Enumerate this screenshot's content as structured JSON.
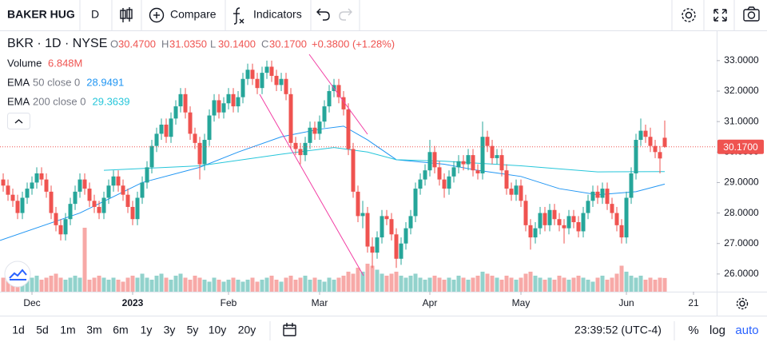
{
  "toolbar": {
    "symbol": "BAKER HUG",
    "interval": "D",
    "compare": "Compare",
    "indicators": "Indicators"
  },
  "chart_data": {
    "type": "candlestick",
    "title": "BKR · 1D · NYSE",
    "header": {
      "open": {
        "label": "O",
        "value": "30.4700"
      },
      "high": {
        "label": "H",
        "value": "31.0350"
      },
      "low": {
        "label": "L",
        "value": "30.1400"
      },
      "close": {
        "label": "C",
        "value": "30.1700"
      },
      "change": "+0.3800 (+1.28%)"
    },
    "up_color": "#26a69a",
    "down_color": "#ef5350",
    "ohlc": [
      [
        29.1,
        29.3,
        28.7,
        28.9
      ],
      [
        28.9,
        29.1,
        28.4,
        28.6
      ],
      [
        28.6,
        28.8,
        28.2,
        28.4
      ],
      [
        28.4,
        28.6,
        27.8,
        28.0
      ],
      [
        28.0,
        28.7,
        27.8,
        28.5
      ],
      [
        28.5,
        29.0,
        28.3,
        28.8
      ],
      [
        28.8,
        29.2,
        28.6,
        29.0
      ],
      [
        29.0,
        29.5,
        28.8,
        29.3
      ],
      [
        29.3,
        29.5,
        28.9,
        29.1
      ],
      [
        29.1,
        29.3,
        28.5,
        28.7
      ],
      [
        28.7,
        28.9,
        27.8,
        28.0
      ],
      [
        28.0,
        28.2,
        27.4,
        27.6
      ],
      [
        27.6,
        27.8,
        27.1,
        27.3
      ],
      [
        27.3,
        28.0,
        27.1,
        27.8
      ],
      [
        27.8,
        28.5,
        27.6,
        28.3
      ],
      [
        28.3,
        28.9,
        28.1,
        28.7
      ],
      [
        28.7,
        29.3,
        28.5,
        29.1
      ],
      [
        29.1,
        29.3,
        28.6,
        28.8
      ],
      [
        28.8,
        29.0,
        28.2,
        28.4
      ],
      [
        28.4,
        28.6,
        28.0,
        28.2
      ],
      [
        28.2,
        28.4,
        27.8,
        28.0
      ],
      [
        28.0,
        28.7,
        27.8,
        28.5
      ],
      [
        28.5,
        29.1,
        28.3,
        28.9
      ],
      [
        28.9,
        29.4,
        28.7,
        29.2
      ],
      [
        29.2,
        29.4,
        28.7,
        28.9
      ],
      [
        28.9,
        29.1,
        28.4,
        28.6
      ],
      [
        28.6,
        28.8,
        28.0,
        28.2
      ],
      [
        28.2,
        28.4,
        27.6,
        27.8
      ],
      [
        27.8,
        28.7,
        27.6,
        28.5
      ],
      [
        28.5,
        29.2,
        28.3,
        29.0
      ],
      [
        29.0,
        29.7,
        28.8,
        29.5
      ],
      [
        29.5,
        30.4,
        29.3,
        30.2
      ],
      [
        30.2,
        30.8,
        30.0,
        30.6
      ],
      [
        30.6,
        31.1,
        30.4,
        30.9
      ],
      [
        30.9,
        31.1,
        30.3,
        30.5
      ],
      [
        30.5,
        31.3,
        30.3,
        31.1
      ],
      [
        31.1,
        31.7,
        30.9,
        31.5
      ],
      [
        31.5,
        32.1,
        31.3,
        31.9
      ],
      [
        31.9,
        32.1,
        31.1,
        31.3
      ],
      [
        31.3,
        31.5,
        30.4,
        30.6
      ],
      [
        30.6,
        30.8,
        30.1,
        30.3
      ],
      [
        30.3,
        30.5,
        29.1,
        29.6
      ],
      [
        29.6,
        30.6,
        29.4,
        30.4
      ],
      [
        30.4,
        31.4,
        30.2,
        31.2
      ],
      [
        31.2,
        31.9,
        31.0,
        31.7
      ],
      [
        31.7,
        31.9,
        31.1,
        31.3
      ],
      [
        31.3,
        31.8,
        31.1,
        31.6
      ],
      [
        31.6,
        32.1,
        31.4,
        31.9
      ],
      [
        31.9,
        32.1,
        31.3,
        31.5
      ],
      [
        31.5,
        32.0,
        31.3,
        31.8
      ],
      [
        31.8,
        32.6,
        31.6,
        32.4
      ],
      [
        32.4,
        32.9,
        32.2,
        32.7
      ],
      [
        32.7,
        32.9,
        32.2,
        32.4
      ],
      [
        32.4,
        32.6,
        31.9,
        32.1
      ],
      [
        32.1,
        32.8,
        31.9,
        32.6
      ],
      [
        32.6,
        33.0,
        32.4,
        32.8
      ],
      [
        32.8,
        33.0,
        32.3,
        32.5
      ],
      [
        32.5,
        32.7,
        32.0,
        32.2
      ],
      [
        32.2,
        32.6,
        32.0,
        32.4
      ],
      [
        32.4,
        32.6,
        31.7,
        31.9
      ],
      [
        31.9,
        32.1,
        30.1,
        30.3
      ],
      [
        30.3,
        30.5,
        29.9,
        30.1
      ],
      [
        30.1,
        30.3,
        29.6,
        29.9
      ],
      [
        29.9,
        30.5,
        29.7,
        30.3
      ],
      [
        30.3,
        31.0,
        30.1,
        30.8
      ],
      [
        30.8,
        31.0,
        30.4,
        30.6
      ],
      [
        30.6,
        31.2,
        30.4,
        31.0
      ],
      [
        31.0,
        31.7,
        30.8,
        31.5
      ],
      [
        31.5,
        32.2,
        31.3,
        32.0
      ],
      [
        32.0,
        32.4,
        31.8,
        32.2
      ],
      [
        32.2,
        32.4,
        31.6,
        31.8
      ],
      [
        31.8,
        32.0,
        31.2,
        31.4
      ],
      [
        31.4,
        31.6,
        29.9,
        30.1
      ],
      [
        30.1,
        30.3,
        28.5,
        28.7
      ],
      [
        28.7,
        28.9,
        27.7,
        27.9
      ],
      [
        27.9,
        28.4,
        27.5,
        28.0
      ],
      [
        28.0,
        28.2,
        26.7,
        26.9
      ],
      [
        26.9,
        27.2,
        26.2,
        26.7
      ],
      [
        26.7,
        27.4,
        26.5,
        27.2
      ],
      [
        27.2,
        28.1,
        27.0,
        27.9
      ],
      [
        27.9,
        28.1,
        27.6,
        27.8
      ],
      [
        27.8,
        28.0,
        27.1,
        27.3
      ],
      [
        27.3,
        27.5,
        26.2,
        26.5
      ],
      [
        26.5,
        27.2,
        26.3,
        27.0
      ],
      [
        27.0,
        27.7,
        26.8,
        27.5
      ],
      [
        27.5,
        28.1,
        27.3,
        27.9
      ],
      [
        27.9,
        29.0,
        27.7,
        28.8
      ],
      [
        28.8,
        29.3,
        28.6,
        29.1
      ],
      [
        29.1,
        29.6,
        28.9,
        29.4
      ],
      [
        29.4,
        30.4,
        29.2,
        30.0
      ],
      [
        30.0,
        30.2,
        29.3,
        29.5
      ],
      [
        29.5,
        29.7,
        28.9,
        29.1
      ],
      [
        29.1,
        29.3,
        28.5,
        28.8
      ],
      [
        28.8,
        29.4,
        28.6,
        29.2
      ],
      [
        29.2,
        29.7,
        29.0,
        29.5
      ],
      [
        29.5,
        29.9,
        29.3,
        29.7
      ],
      [
        29.7,
        29.9,
        29.4,
        29.6
      ],
      [
        29.6,
        30.1,
        29.4,
        29.9
      ],
      [
        29.9,
        30.1,
        29.2,
        29.4
      ],
      [
        29.4,
        29.6,
        29.1,
        29.3
      ],
      [
        29.3,
        31.0,
        29.1,
        30.5
      ],
      [
        30.5,
        30.7,
        30.0,
        30.2
      ],
      [
        30.2,
        30.4,
        29.6,
        29.8
      ],
      [
        29.8,
        30.1,
        29.6,
        29.9
      ],
      [
        29.9,
        30.1,
        29.2,
        29.4
      ],
      [
        29.4,
        29.6,
        28.6,
        28.8
      ],
      [
        28.8,
        29.0,
        28.4,
        28.6
      ],
      [
        28.6,
        29.1,
        28.4,
        28.9
      ],
      [
        28.9,
        29.1,
        28.2,
        28.4
      ],
      [
        28.4,
        28.6,
        27.4,
        27.6
      ],
      [
        27.6,
        27.8,
        26.8,
        27.2
      ],
      [
        27.2,
        27.7,
        27.0,
        27.5
      ],
      [
        27.5,
        28.2,
        27.3,
        28.0
      ],
      [
        28.0,
        28.2,
        27.4,
        27.6
      ],
      [
        27.6,
        28.3,
        27.4,
        28.1
      ],
      [
        28.1,
        28.3,
        27.6,
        27.8
      ],
      [
        27.8,
        28.0,
        27.4,
        27.6
      ],
      [
        27.6,
        27.8,
        27.0,
        27.5
      ],
      [
        27.5,
        28.1,
        27.3,
        27.9
      ],
      [
        27.9,
        28.1,
        27.5,
        27.7
      ],
      [
        27.7,
        27.9,
        27.2,
        27.4
      ],
      [
        27.4,
        28.2,
        27.2,
        28.0
      ],
      [
        28.0,
        28.6,
        27.8,
        28.4
      ],
      [
        28.4,
        28.9,
        28.2,
        28.7
      ],
      [
        28.7,
        28.9,
        28.3,
        28.5
      ],
      [
        28.5,
        29.0,
        28.3,
        28.8
      ],
      [
        28.8,
        29.0,
        28.1,
        28.3
      ],
      [
        28.3,
        28.5,
        27.8,
        28.0
      ],
      [
        28.0,
        28.2,
        27.4,
        27.6
      ],
      [
        27.6,
        27.8,
        27.0,
        27.2
      ],
      [
        27.2,
        28.7,
        27.0,
        28.5
      ],
      [
        28.5,
        29.5,
        28.3,
        29.3
      ],
      [
        29.3,
        30.6,
        29.1,
        30.4
      ],
      [
        30.4,
        31.1,
        30.2,
        30.7
      ],
      [
        30.7,
        30.9,
        30.3,
        30.5
      ],
      [
        30.5,
        30.8,
        30.0,
        30.2
      ],
      [
        30.2,
        30.4,
        29.8,
        30.0
      ],
      [
        30.0,
        30.2,
        29.3,
        29.79
      ],
      [
        30.47,
        31.035,
        30.14,
        30.17
      ]
    ],
    "volume_name": "Volume",
    "volume_value": "6.848M",
    "volume": [
      7,
      6,
      8,
      7,
      9,
      6,
      7,
      8,
      6,
      7,
      8,
      9,
      7,
      6,
      7,
      8,
      7,
      32,
      6,
      7,
      8,
      7,
      6,
      7,
      6,
      5,
      7,
      8,
      7,
      9,
      7,
      6,
      8,
      9,
      7,
      6,
      8,
      9,
      7,
      6,
      8,
      7,
      6,
      5,
      7,
      6,
      5,
      6,
      7,
      6,
      5,
      6,
      7,
      5,
      6,
      7,
      8,
      6,
      5,
      7,
      8,
      6,
      7,
      8,
      6,
      7,
      6,
      5,
      7,
      6,
      7,
      8,
      10,
      9,
      12,
      10,
      14,
      13,
      11,
      9,
      8,
      9,
      10,
      8,
      7,
      8,
      9,
      7,
      6,
      7,
      8,
      7,
      6,
      7,
      6,
      8,
      7,
      6,
      7,
      8,
      10,
      9,
      8,
      7,
      6,
      8,
      7,
      6,
      7,
      9,
      10,
      8,
      7,
      6,
      7,
      6,
      8,
      7,
      6,
      7,
      8,
      7,
      6,
      5,
      7,
      8,
      6,
      7,
      9,
      13,
      10,
      8,
      7,
      8,
      6,
      7,
      6,
      7,
      6.848
    ],
    "indicators": [
      {
        "name": "EMA",
        "params": "50 close 0",
        "value": "28.9491",
        "color": "#2196f3",
        "x": [
          -0.67,
          16,
          29,
          41,
          49,
          58,
          66,
          71,
          76,
          82,
          92,
          99,
          108,
          116,
          124,
          132,
          138
        ],
        "values": [
          27.1,
          28.0,
          29.0,
          29.5,
          30.0,
          30.5,
          30.75,
          30.85,
          30.4,
          29.75,
          29.6,
          29.4,
          29.2,
          28.8,
          28.6,
          28.7,
          28.95
        ]
      },
      {
        "name": "EMA",
        "params": "200 close 0",
        "value": "29.3639",
        "color": "#26c6da",
        "x": [
          21,
          41,
          58,
          69,
          76,
          82,
          92,
          108,
          124,
          138
        ],
        "values": [
          29.4,
          29.55,
          29.93,
          30.15,
          30.0,
          29.75,
          29.7,
          29.55,
          29.35,
          29.36
        ]
      }
    ],
    "xlim": [
      -0.67,
      148.83
    ],
    "xticks": [
      {
        "value": 6,
        "label": "Dec"
      },
      {
        "value": 27,
        "label": "2023"
      },
      {
        "value": 47,
        "label": "Feb"
      },
      {
        "value": 66,
        "label": "Mar"
      },
      {
        "value": 89,
        "label": "Apr"
      },
      {
        "value": 108,
        "label": "May"
      },
      {
        "value": 130,
        "label": "Jun"
      },
      {
        "value": 144,
        "label": "21"
      }
    ],
    "ylim": [
      25.42,
      33.94
    ],
    "yticks": [
      {
        "value": 26,
        "label": "26.0000"
      },
      {
        "value": 27,
        "label": "27.0000"
      },
      {
        "value": 28,
        "label": "28.0000"
      },
      {
        "value": 29,
        "label": "29.0000"
      },
      {
        "value": 30,
        "label": "30.0000"
      },
      {
        "value": 31,
        "label": "31.0000"
      },
      {
        "value": 32,
        "label": "32.0000"
      },
      {
        "value": 33,
        "label": "33.0000"
      }
    ],
    "grid": false
  },
  "range_bar": {
    "ranges": [
      "1d",
      "5d",
      "1m",
      "3m",
      "6m",
      "1y",
      "3y",
      "5y",
      "10y",
      "20y"
    ],
    "time": "23:39:52 (UTC-4)",
    "percent": "%",
    "log": "log",
    "auto": "auto"
  }
}
